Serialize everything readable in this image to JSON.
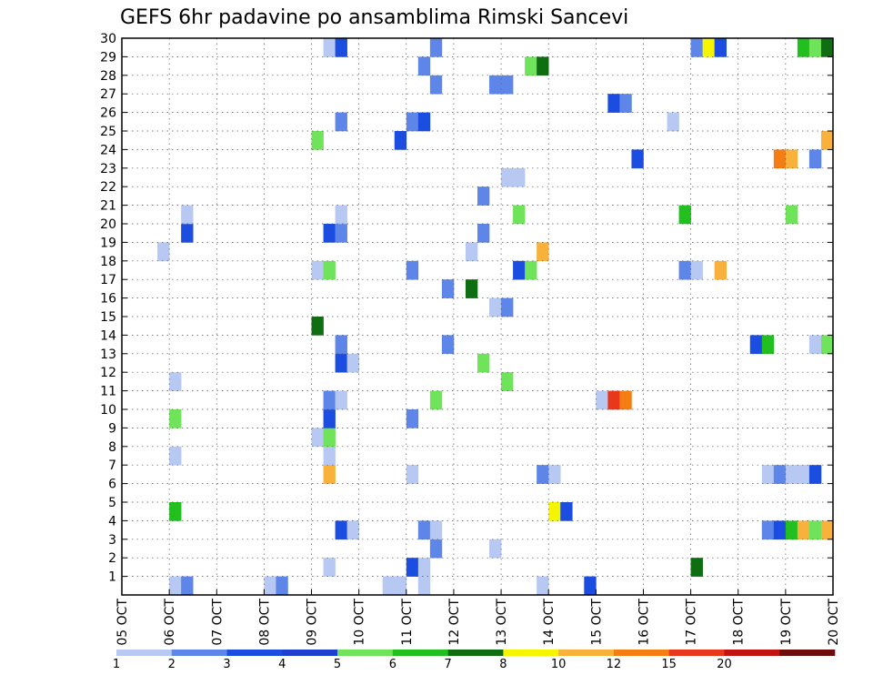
{
  "chart_data": {
    "type": "heatmap",
    "title": "GEFS 6hr padavine po ansamblima Rimski Sancevi",
    "x_tick_labels": [
      "05 OCT",
      "06 OCT",
      "07 OCT",
      "08 OCT",
      "09 OCT",
      "10 OCT",
      "11 OCT",
      "12 OCT",
      "13 OCT",
      "14 OCT",
      "15 OCT",
      "16 OCT",
      "17 OCT",
      "18 OCT",
      "19 OCT",
      "20 OCT"
    ],
    "y_tick_labels": [
      "1",
      "2",
      "3",
      "4",
      "5",
      "6",
      "7",
      "8",
      "9",
      "10",
      "11",
      "12",
      "13",
      "14",
      "15",
      "16",
      "17",
      "18",
      "19",
      "20",
      "21",
      "22",
      "23",
      "24",
      "25",
      "26",
      "27",
      "28",
      "29",
      "30"
    ],
    "xlim": [
      0,
      15
    ],
    "ylim": [
      0,
      30
    ],
    "steps_per_day": 4,
    "grid": true,
    "colorbar": {
      "tick_labels": [
        "1",
        "2",
        "3",
        "4",
        "5",
        "6",
        "7",
        "8",
        "10",
        "12",
        "15",
        "20"
      ],
      "colors": [
        "#b7c8f2",
        "#5d86e8",
        "#1b4de0",
        "#1f3fcf",
        "#6fe35a",
        "#22c01f",
        "#0f6e12",
        "#f5f500",
        "#f8b23c",
        "#f57e14",
        "#e8371a",
        "#c21212",
        "#6e0b0b"
      ]
    },
    "cells": [
      {
        "m": 0,
        "s": 4,
        "c": "#b7c8f2"
      },
      {
        "m": 0,
        "s": 5,
        "c": "#5d86e8"
      },
      {
        "m": 0,
        "s": 12,
        "c": "#b7c8f2"
      },
      {
        "m": 0,
        "s": 13,
        "c": "#5d86e8"
      },
      {
        "m": 0,
        "s": 22,
        "c": "#b7c8f2"
      },
      {
        "m": 0,
        "s": 23,
        "c": "#b7c8f2"
      },
      {
        "m": 0,
        "s": 25,
        "c": "#b7c8f2"
      },
      {
        "m": 0,
        "s": 35,
        "c": "#b7c8f2"
      },
      {
        "m": 0,
        "s": 39,
        "c": "#1b4de0"
      },
      {
        "m": 1,
        "s": 17,
        "c": "#b7c8f2"
      },
      {
        "m": 1,
        "s": 24,
        "c": "#1b4de0"
      },
      {
        "m": 1,
        "s": 25,
        "c": "#b7c8f2"
      },
      {
        "m": 1,
        "s": 48,
        "c": "#0f6e12"
      },
      {
        "m": 2,
        "s": 26,
        "c": "#5d86e8"
      },
      {
        "m": 2,
        "s": 31,
        "c": "#b7c8f2"
      },
      {
        "m": 3,
        "s": 18,
        "c": "#1b4de0"
      },
      {
        "m": 3,
        "s": 19,
        "c": "#b7c8f2"
      },
      {
        "m": 3,
        "s": 25,
        "c": "#5d86e8"
      },
      {
        "m": 3,
        "s": 26,
        "c": "#b7c8f2"
      },
      {
        "m": 3,
        "s": 54,
        "c": "#5d86e8"
      },
      {
        "m": 3,
        "s": 55,
        "c": "#1b4de0"
      },
      {
        "m": 3,
        "s": 56,
        "c": "#22c01f"
      },
      {
        "m": 3,
        "s": 57,
        "c": "#f8b23c"
      },
      {
        "m": 3,
        "s": 58,
        "c": "#6fe35a"
      },
      {
        "m": 3,
        "s": 59,
        "c": "#f8b23c"
      },
      {
        "m": 4,
        "s": 4,
        "c": "#22c01f"
      },
      {
        "m": 4,
        "s": 36,
        "c": "#f5f500"
      },
      {
        "m": 4,
        "s": 37,
        "c": "#1b4de0"
      },
      {
        "m": 6,
        "s": 17,
        "c": "#f8b23c"
      },
      {
        "m": 6,
        "s": 24,
        "c": "#b7c8f2"
      },
      {
        "m": 6,
        "s": 35,
        "c": "#5d86e8"
      },
      {
        "m": 6,
        "s": 36,
        "c": "#b7c8f2"
      },
      {
        "m": 6,
        "s": 54,
        "c": "#b7c8f2"
      },
      {
        "m": 6,
        "s": 55,
        "c": "#5d86e8"
      },
      {
        "m": 6,
        "s": 56,
        "c": "#b7c8f2"
      },
      {
        "m": 6,
        "s": 57,
        "c": "#b7c8f2"
      },
      {
        "m": 6,
        "s": 58,
        "c": "#1b4de0"
      },
      {
        "m": 7,
        "s": 4,
        "c": "#b7c8f2"
      },
      {
        "m": 7,
        "s": 17,
        "c": "#b7c8f2"
      },
      {
        "m": 8,
        "s": 16,
        "c": "#b7c8f2"
      },
      {
        "m": 8,
        "s": 17,
        "c": "#6fe35a"
      },
      {
        "m": 9,
        "s": 4,
        "c": "#6fe35a"
      },
      {
        "m": 9,
        "s": 17,
        "c": "#1b4de0"
      },
      {
        "m": 9,
        "s": 24,
        "c": "#5d86e8"
      },
      {
        "m": 10,
        "s": 17,
        "c": "#5d86e8"
      },
      {
        "m": 10,
        "s": 18,
        "c": "#b7c8f2"
      },
      {
        "m": 10,
        "s": 26,
        "c": "#6fe35a"
      },
      {
        "m": 10,
        "s": 40,
        "c": "#b7c8f2"
      },
      {
        "m": 10,
        "s": 41,
        "c": "#e8371a"
      },
      {
        "m": 10,
        "s": 42,
        "c": "#f57e14"
      },
      {
        "m": 11,
        "s": 4,
        "c": "#b7c8f2"
      },
      {
        "m": 11,
        "s": 32,
        "c": "#6fe35a"
      },
      {
        "m": 12,
        "s": 18,
        "c": "#1b4de0"
      },
      {
        "m": 12,
        "s": 19,
        "c": "#b7c8f2"
      },
      {
        "m": 12,
        "s": 30,
        "c": "#6fe35a"
      },
      {
        "m": 13,
        "s": 18,
        "c": "#5d86e8"
      },
      {
        "m": 13,
        "s": 27,
        "c": "#5d86e8"
      },
      {
        "m": 13,
        "s": 53,
        "c": "#1b4de0"
      },
      {
        "m": 13,
        "s": 54,
        "c": "#22c01f"
      },
      {
        "m": 13,
        "s": 58,
        "c": "#b7c8f2"
      },
      {
        "m": 13,
        "s": 59,
        "c": "#6fe35a"
      },
      {
        "m": 14,
        "s": 16,
        "c": "#0f6e12"
      },
      {
        "m": 15,
        "s": 31,
        "c": "#b7c8f2"
      },
      {
        "m": 15,
        "s": 32,
        "c": "#5d86e8"
      },
      {
        "m": 16,
        "s": 27,
        "c": "#5d86e8"
      },
      {
        "m": 16,
        "s": 29,
        "c": "#0f6e12"
      },
      {
        "m": 17,
        "s": 16,
        "c": "#b7c8f2"
      },
      {
        "m": 17,
        "s": 17,
        "c": "#6fe35a"
      },
      {
        "m": 17,
        "s": 24,
        "c": "#5d86e8"
      },
      {
        "m": 17,
        "s": 33,
        "c": "#1b4de0"
      },
      {
        "m": 17,
        "s": 34,
        "c": "#6fe35a"
      },
      {
        "m": 17,
        "s": 47,
        "c": "#5d86e8"
      },
      {
        "m": 17,
        "s": 48,
        "c": "#b7c8f2"
      },
      {
        "m": 17,
        "s": 50,
        "c": "#f8b23c"
      },
      {
        "m": 18,
        "s": 3,
        "c": "#b7c8f2"
      },
      {
        "m": 18,
        "s": 29,
        "c": "#b7c8f2"
      },
      {
        "m": 18,
        "s": 35,
        "c": "#f8b23c"
      },
      {
        "m": 19,
        "s": 5,
        "c": "#1b4de0"
      },
      {
        "m": 19,
        "s": 17,
        "c": "#1b4de0"
      },
      {
        "m": 19,
        "s": 18,
        "c": "#5d86e8"
      },
      {
        "m": 19,
        "s": 30,
        "c": "#5d86e8"
      },
      {
        "m": 20,
        "s": 5,
        "c": "#b7c8f2"
      },
      {
        "m": 20,
        "s": 18,
        "c": "#b7c8f2"
      },
      {
        "m": 20,
        "s": 33,
        "c": "#6fe35a"
      },
      {
        "m": 20,
        "s": 47,
        "c": "#22c01f"
      },
      {
        "m": 20,
        "s": 56,
        "c": "#6fe35a"
      },
      {
        "m": 21,
        "s": 30,
        "c": "#5d86e8"
      },
      {
        "m": 22,
        "s": 32,
        "c": "#b7c8f2"
      },
      {
        "m": 22,
        "s": 33,
        "c": "#b7c8f2"
      },
      {
        "m": 23,
        "s": 43,
        "c": "#1b4de0"
      },
      {
        "m": 23,
        "s": 55,
        "c": "#f57e14"
      },
      {
        "m": 23,
        "s": 56,
        "c": "#f8b23c"
      },
      {
        "m": 23,
        "s": 58,
        "c": "#5d86e8"
      },
      {
        "m": 24,
        "s": 16,
        "c": "#6fe35a"
      },
      {
        "m": 24,
        "s": 23,
        "c": "#1b4de0"
      },
      {
        "m": 24,
        "s": 59,
        "c": "#f8b23c"
      },
      {
        "m": 25,
        "s": 18,
        "c": "#5d86e8"
      },
      {
        "m": 25,
        "s": 24,
        "c": "#5d86e8"
      },
      {
        "m": 25,
        "s": 25,
        "c": "#1b4de0"
      },
      {
        "m": 25,
        "s": 46,
        "c": "#b7c8f2"
      },
      {
        "m": 26,
        "s": 41,
        "c": "#1b4de0"
      },
      {
        "m": 26,
        "s": 42,
        "c": "#5d86e8"
      },
      {
        "m": 27,
        "s": 26,
        "c": "#5d86e8"
      },
      {
        "m": 27,
        "s": 31,
        "c": "#5d86e8"
      },
      {
        "m": 27,
        "s": 32,
        "c": "#5d86e8"
      },
      {
        "m": 28,
        "s": 25,
        "c": "#5d86e8"
      },
      {
        "m": 28,
        "s": 34,
        "c": "#6fe35a"
      },
      {
        "m": 28,
        "s": 35,
        "c": "#0f6e12"
      },
      {
        "m": 29,
        "s": 17,
        "c": "#b7c8f2"
      },
      {
        "m": 29,
        "s": 18,
        "c": "#1b4de0"
      },
      {
        "m": 29,
        "s": 26,
        "c": "#5d86e8"
      },
      {
        "m": 29,
        "s": 48,
        "c": "#5d86e8"
      },
      {
        "m": 29,
        "s": 49,
        "c": "#f5f500"
      },
      {
        "m": 29,
        "s": 50,
        "c": "#1b4de0"
      },
      {
        "m": 29,
        "s": 57,
        "c": "#22c01f"
      },
      {
        "m": 29,
        "s": 58,
        "c": "#6fe35a"
      },
      {
        "m": 29,
        "s": 59,
        "c": "#0f6e12"
      }
    ]
  }
}
